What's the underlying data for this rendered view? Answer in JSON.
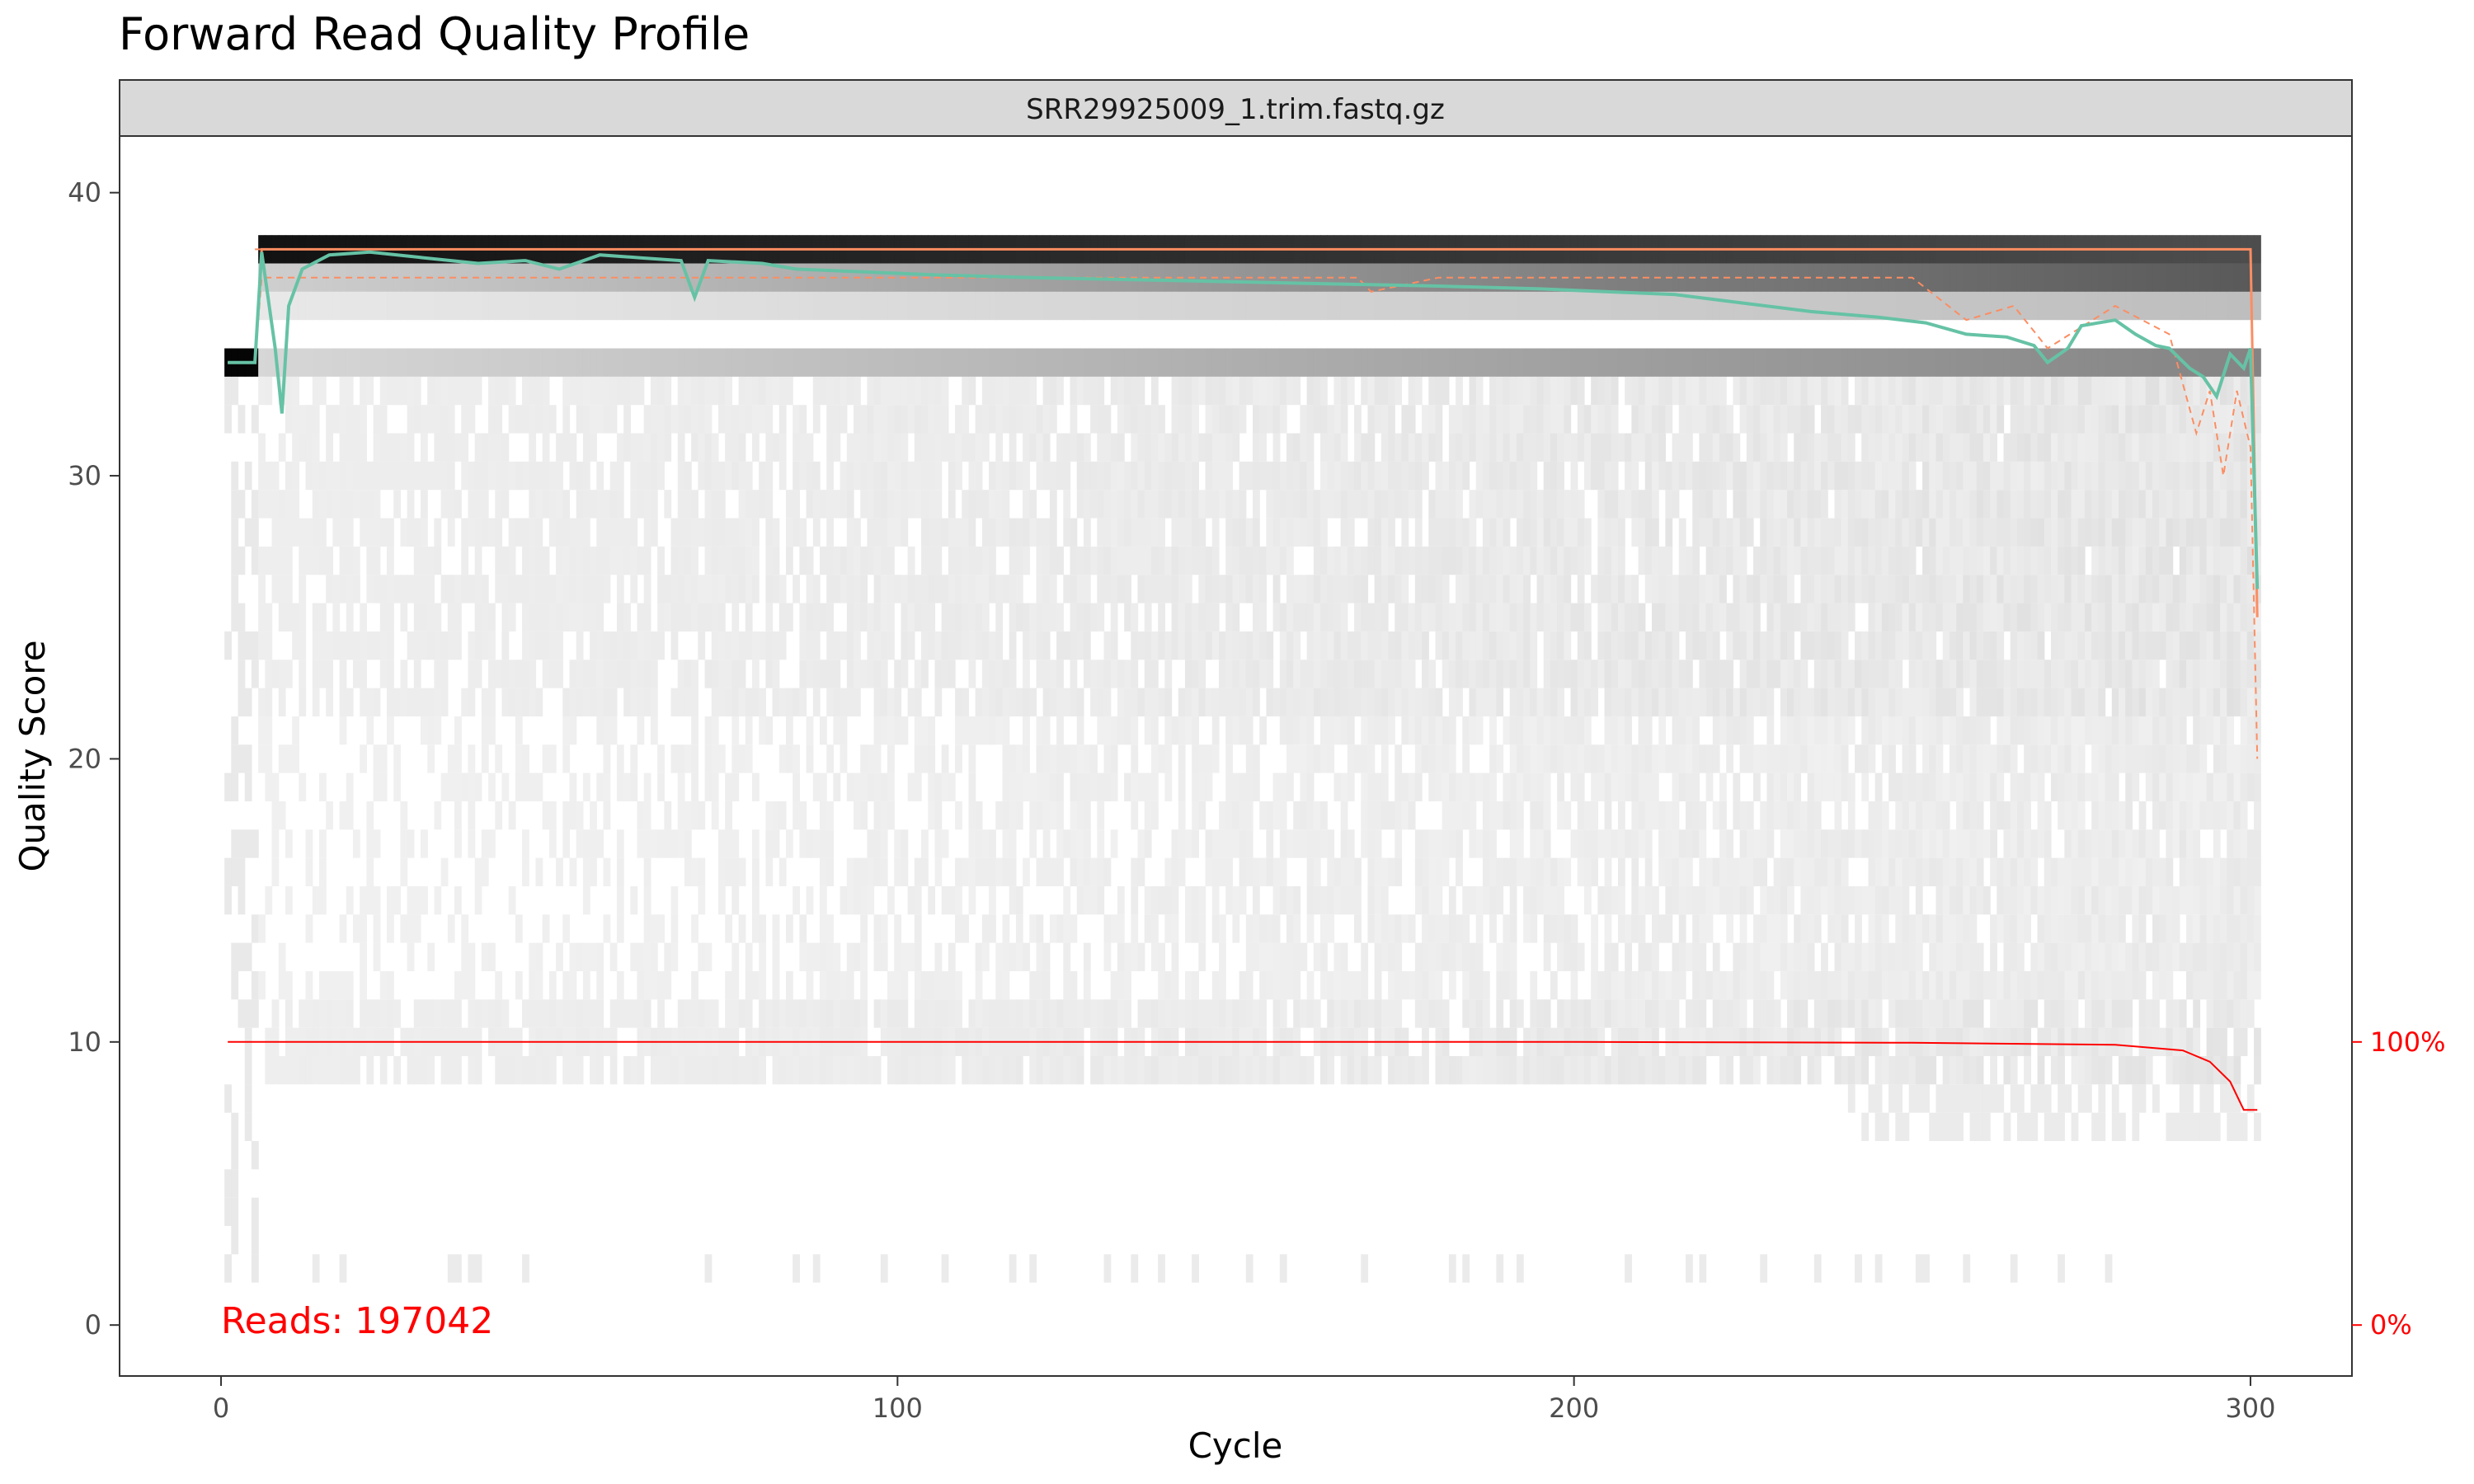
{
  "chart_data": {
    "type": "heatmap",
    "title": "Forward Read Quality Profile",
    "facet_label": "SRR29925009_1.trim.fastq.gz",
    "xlabel": "Cycle",
    "ylabel": "Quality Score",
    "xlim": [
      -15,
      315
    ],
    "ylim": [
      -1.8,
      42
    ],
    "x_ticks": [
      0,
      100,
      200,
      300
    ],
    "y_ticks": [
      0,
      10,
      20,
      30,
      40
    ],
    "secondary_axis": {
      "labels": [
        "0%",
        "100%"
      ],
      "values": [
        0,
        10
      ],
      "color": "#ff0000"
    },
    "reads_annotation": "Reads:  197042",
    "grid": false,
    "colors": {
      "mean_quality": "#66c2a5",
      "median_quality": "#fc8d62",
      "quartiles": "#fc8d62",
      "read_fraction": "#ff0000",
      "strip_fill": "#d9d9d9"
    },
    "mean_quality": [
      [
        1,
        34
      ],
      [
        5,
        34
      ],
      [
        6,
        37.9
      ],
      [
        8,
        34.5
      ],
      [
        9,
        32.2
      ],
      [
        10,
        36
      ],
      [
        12,
        37.3
      ],
      [
        16,
        37.8
      ],
      [
        22,
        37.9
      ],
      [
        30,
        37.7
      ],
      [
        38,
        37.5
      ],
      [
        45,
        37.6
      ],
      [
        50,
        37.3
      ],
      [
        56,
        37.8
      ],
      [
        62,
        37.7
      ],
      [
        68,
        37.6
      ],
      [
        70,
        36.3
      ],
      [
        72,
        37.6
      ],
      [
        80,
        37.5
      ],
      [
        85,
        37.3
      ],
      [
        95,
        37.2
      ],
      [
        105,
        37.1
      ],
      [
        120,
        37.0
      ],
      [
        140,
        36.9
      ],
      [
        160,
        36.8
      ],
      [
        180,
        36.7
      ],
      [
        195,
        36.6
      ],
      [
        205,
        36.5
      ],
      [
        215,
        36.4
      ],
      [
        225,
        36.1
      ],
      [
        235,
        35.8
      ],
      [
        245,
        35.6
      ],
      [
        252,
        35.4
      ],
      [
        258,
        35.0
      ],
      [
        264,
        34.9
      ],
      [
        268,
        34.6
      ],
      [
        270,
        34.0
      ],
      [
        273,
        34.5
      ],
      [
        275,
        35.3
      ],
      [
        280,
        35.5
      ],
      [
        283,
        35.0
      ],
      [
        286,
        34.6
      ],
      [
        288,
        34.5
      ],
      [
        291,
        33.8
      ],
      [
        293,
        33.5
      ],
      [
        295,
        32.8
      ],
      [
        297,
        34.3
      ],
      [
        299,
        33.8
      ],
      [
        300,
        34.5
      ],
      [
        301,
        26
      ]
    ],
    "median_quality": [
      [
        1,
        34
      ],
      [
        5,
        34
      ],
      [
        6,
        38
      ],
      [
        300,
        38
      ],
      [
        301,
        25
      ]
    ],
    "quartile_upper": [
      [
        5,
        38
      ],
      [
        300,
        38
      ]
    ],
    "quartile_lower": [
      [
        1,
        34
      ],
      [
        5,
        34
      ],
      [
        6,
        37
      ],
      [
        168,
        37
      ],
      [
        170,
        36.5
      ],
      [
        180,
        37
      ],
      [
        195,
        37
      ],
      [
        205,
        37
      ],
      [
        220,
        37
      ],
      [
        250,
        37
      ],
      [
        258,
        35.5
      ],
      [
        265,
        36
      ],
      [
        270,
        34.5
      ],
      [
        280,
        36
      ],
      [
        288,
        35
      ],
      [
        292,
        31.5
      ],
      [
        294,
        33
      ],
      [
        296,
        30
      ],
      [
        298,
        33
      ],
      [
        300,
        31
      ],
      [
        301,
        20
      ]
    ],
    "read_fraction": [
      [
        1,
        10
      ],
      [
        200,
        10
      ],
      [
        250,
        9.97
      ],
      [
        280,
        9.9
      ],
      [
        290,
        9.7
      ],
      [
        294,
        9.3
      ],
      [
        297,
        8.6
      ],
      [
        299,
        7.6
      ],
      [
        301,
        7.6
      ]
    ]
  }
}
